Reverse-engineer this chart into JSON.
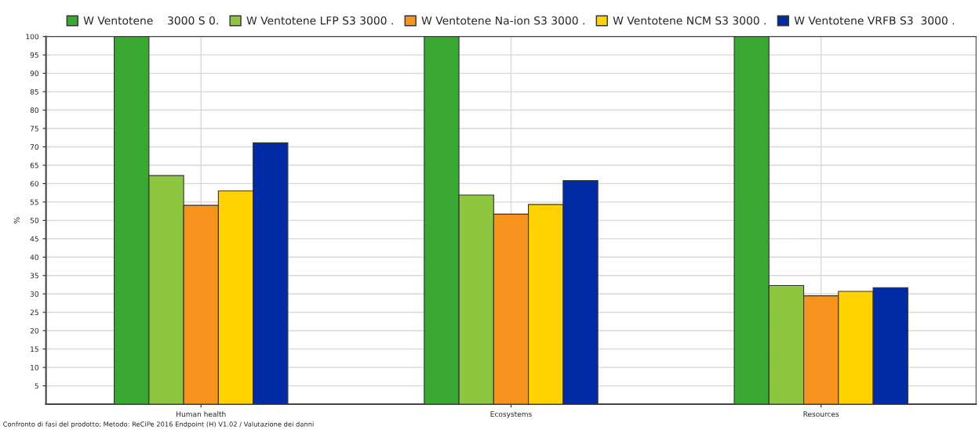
{
  "chart_data": {
    "type": "bar",
    "categories": [
      "Human health",
      "Ecosystems",
      "Resources"
    ],
    "series": [
      {
        "name": "W Ventotene    3000 S 0.",
        "color": "#38a832",
        "values": [
          100,
          100,
          100
        ]
      },
      {
        "name": "W Ventotene LFP S3 3000 .",
        "color": "#8dc63f",
        "values": [
          62.2,
          56.9,
          32.3
        ]
      },
      {
        "name": "W Ventotene Na-ion S3 3000 .",
        "color": "#f7941d",
        "values": [
          54.1,
          51.7,
          29.5
        ]
      },
      {
        "name": "W Ventotene NCM S3 3000 .",
        "color": "#ffd200",
        "values": [
          58,
          54.3,
          30.7
        ]
      },
      {
        "name": "W Ventotene VRFB S3  3000 .",
        "color": "#002ba5",
        "values": [
          71.1,
          60.8,
          31.7
        ]
      }
    ],
    "ylabel": "%",
    "ylim": [
      0,
      100
    ],
    "yticks": [
      5,
      10,
      15,
      20,
      25,
      30,
      35,
      40,
      45,
      50,
      55,
      60,
      65,
      70,
      75,
      80,
      85,
      90,
      95,
      100
    ],
    "grid": true,
    "legend": "top",
    "annotations": [
      "Confronto di fasi del prodotto; Metodo: ReCiPe 2016 Endpoint (H) V1.02 / Valutazione dei danni"
    ]
  }
}
